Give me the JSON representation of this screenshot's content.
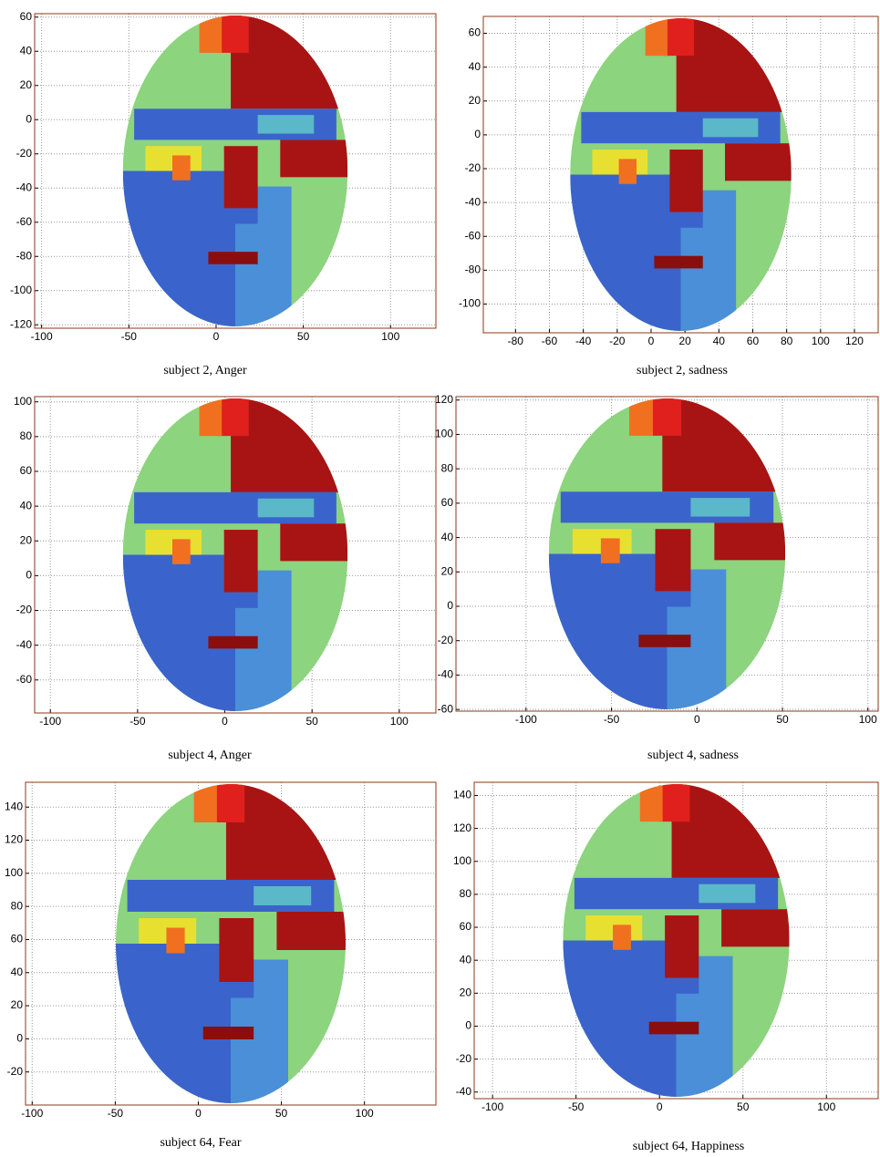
{
  "chart_data": [
    {
      "type": "segmentation",
      "title": "subject 2, Anger",
      "xlim": [
        -104,
        126
      ],
      "ylim": [
        -122,
        62
      ],
      "xticks": [
        -100,
        -50,
        0,
        50,
        100
      ],
      "yticks": [
        -120,
        -100,
        -80,
        -60,
        -40,
        -20,
        0,
        20,
        40,
        60
      ],
      "grid": true
    },
    {
      "type": "segmentation",
      "title": "subject 2, sadness",
      "xlim": [
        -99,
        134
      ],
      "ylim": [
        -117,
        70
      ],
      "xticks": [
        -80,
        -60,
        -40,
        -20,
        0,
        20,
        40,
        60,
        80,
        100,
        120
      ],
      "yticks": [
        -100,
        -80,
        -60,
        -40,
        -20,
        0,
        20,
        40,
        60
      ],
      "grid": true
    },
    {
      "type": "segmentation",
      "title": "subject 4, Anger",
      "xlim": [
        -109,
        121
      ],
      "ylim": [
        -79,
        103
      ],
      "xticks": [
        -100,
        -50,
        0,
        50,
        100
      ],
      "yticks": [
        -60,
        -40,
        -20,
        0,
        20,
        40,
        60,
        80,
        100
      ],
      "grid": true
    },
    {
      "type": "segmentation",
      "title": "subject 4, sadness",
      "xlim": [
        -141,
        106
      ],
      "ylim": [
        -61,
        122
      ],
      "xticks": [
        -100,
        -50,
        0,
        50,
        100
      ],
      "yticks": [
        -60,
        -40,
        -20,
        0,
        20,
        40,
        60,
        80,
        100,
        120
      ],
      "grid": true
    },
    {
      "type": "segmentation",
      "title": "subject 64, Fear",
      "xlim": [
        -104,
        143
      ],
      "ylim": [
        -40,
        155
      ],
      "xticks": [
        -100,
        -50,
        0,
        50,
        100
      ],
      "yticks": [
        -20,
        0,
        20,
        40,
        60,
        80,
        100,
        120,
        140
      ],
      "grid": true
    },
    {
      "type": "segmentation",
      "title": "subject 64, Happiness",
      "xlim": [
        -111,
        131
      ],
      "ylim": [
        -44,
        148
      ],
      "xticks": [
        -100,
        -50,
        0,
        50,
        100
      ],
      "yticks": [
        -40,
        -20,
        0,
        20,
        40,
        60,
        80,
        100,
        120,
        140
      ],
      "grid": true
    }
  ]
}
